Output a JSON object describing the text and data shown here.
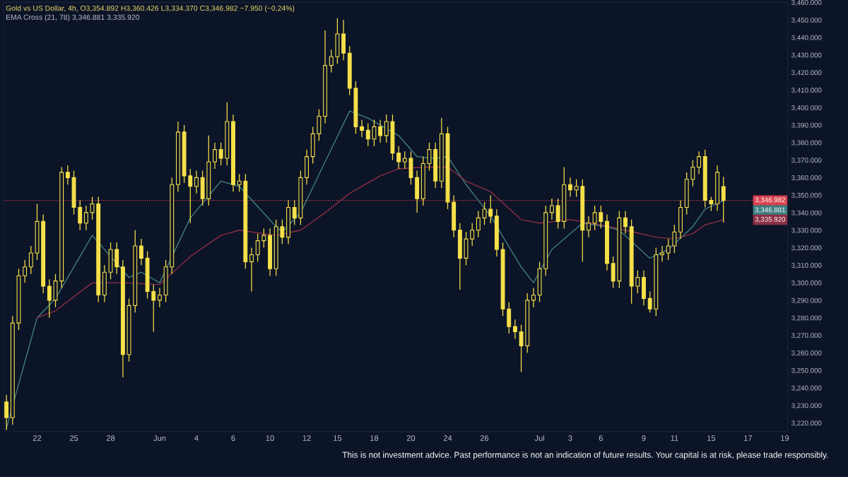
{
  "chart_data": {
    "type": "candlestick",
    "title": "Gold vs US Dollar, 4h, O3,354.892 H3,360.426 L3,334.370 C3,346.982 −7.950 (−0.24%)",
    "subtitle": "EMA Cross (21, 78) 3,346.881 3,335.920",
    "annotations": [
      "This is not investment advice. Past performance is not an indication of future results. Your capital is at risk, please trade responsibly.",
      "3,346.881",
      "3,335.920"
    ],
    "series": [
      {
        "color": "#f5e04a",
        "ohlc": [
          [
            3232,
            3236,
            3216,
            3223
          ],
          [
            3223,
            3281,
            3219,
            3277
          ],
          [
            3277,
            3308,
            3273,
            3304
          ],
          [
            3304,
            3313,
            3300,
            3309
          ],
          [
            3309,
            3321,
            3305,
            3317
          ],
          [
            3317,
            3345,
            3313,
            3335
          ],
          [
            3335,
            3339,
            3294,
            3298
          ],
          [
            3298,
            3302,
            3280,
            3290
          ],
          [
            3290,
            3305,
            3286,
            3301
          ],
          [
            3301,
            3366,
            3297,
            3363
          ],
          [
            3363,
            3367,
            3356,
            3360
          ],
          [
            3360,
            3364,
            3339,
            3343
          ],
          [
            3343,
            3347,
            3330,
            3334
          ],
          [
            3334,
            3344,
            3330,
            3340
          ],
          [
            3340,
            3349,
            3336,
            3345
          ],
          [
            3345,
            3349,
            3289,
            3293
          ],
          [
            3293,
            3310,
            3289,
            3306
          ],
          [
            3306,
            3323,
            3302,
            3319
          ],
          [
            3319,
            3323,
            3305,
            3309
          ],
          [
            3309,
            3313,
            3246,
            3259
          ],
          [
            3259,
            3291,
            3255,
            3287
          ],
          [
            3287,
            3330,
            3283,
            3321
          ],
          [
            3321,
            3325,
            3310,
            3314
          ],
          [
            3314,
            3318,
            3291,
            3295
          ],
          [
            3295,
            3299,
            3272,
            3290
          ],
          [
            3290,
            3297,
            3286,
            3293
          ],
          [
            3293,
            3313,
            3289,
            3309
          ],
          [
            3309,
            3360,
            3305,
            3356
          ],
          [
            3356,
            3392,
            3352,
            3386
          ],
          [
            3386,
            3390,
            3357,
            3361
          ],
          [
            3361,
            3365,
            3334,
            3355
          ],
          [
            3355,
            3364,
            3351,
            3360
          ],
          [
            3360,
            3364,
            3344,
            3348
          ],
          [
            3348,
            3384,
            3344,
            3369
          ],
          [
            3369,
            3380,
            3365,
            3376
          ],
          [
            3376,
            3380,
            3367,
            3371
          ],
          [
            3371,
            3403,
            3367,
            3392
          ],
          [
            3392,
            3396,
            3352,
            3356
          ],
          [
            3356,
            3362,
            3352,
            3358
          ],
          [
            3358,
            3362,
            3308,
            3312
          ],
          [
            3312,
            3320,
            3295,
            3316
          ],
          [
            3316,
            3328,
            3312,
            3324
          ],
          [
            3324,
            3331,
            3320,
            3327
          ],
          [
            3327,
            3331,
            3304,
            3308
          ],
          [
            3308,
            3336,
            3304,
            3332
          ],
          [
            3332,
            3336,
            3322,
            3326
          ],
          [
            3326,
            3347,
            3322,
            3343
          ],
          [
            3343,
            3347,
            3333,
            3337
          ],
          [
            3337,
            3364,
            3333,
            3360
          ],
          [
            3360,
            3376,
            3356,
            3372
          ],
          [
            3372,
            3389,
            3368,
            3385
          ],
          [
            3385,
            3399,
            3381,
            3395
          ],
          [
            3395,
            3444,
            3391,
            3424
          ],
          [
            3424,
            3433,
            3420,
            3429
          ],
          [
            3429,
            3451,
            3425,
            3442
          ],
          [
            3442,
            3450,
            3427,
            3431
          ],
          [
            3431,
            3435,
            3407,
            3411
          ],
          [
            3411,
            3415,
            3385,
            3389
          ],
          [
            3389,
            3393,
            3383,
            3387
          ],
          [
            3387,
            3391,
            3378,
            3382
          ],
          [
            3382,
            3393,
            3378,
            3389
          ],
          [
            3389,
            3393,
            3380,
            3384
          ],
          [
            3384,
            3396,
            3380,
            3392
          ],
          [
            3392,
            3396,
            3370,
            3374
          ],
          [
            3374,
            3378,
            3365,
            3369
          ],
          [
            3369,
            3375,
            3365,
            3371
          ],
          [
            3371,
            3375,
            3356,
            3360
          ],
          [
            3360,
            3364,
            3340,
            3348
          ],
          [
            3348,
            3372,
            3344,
            3368
          ],
          [
            3368,
            3380,
            3364,
            3376
          ],
          [
            3376,
            3380,
            3354,
            3358
          ],
          [
            3358,
            3394,
            3354,
            3385
          ],
          [
            3385,
            3389,
            3342,
            3346
          ],
          [
            3346,
            3350,
            3326,
            3330
          ],
          [
            3330,
            3334,
            3296,
            3314
          ],
          [
            3314,
            3329,
            3310,
            3325
          ],
          [
            3325,
            3334,
            3321,
            3330
          ],
          [
            3330,
            3341,
            3326,
            3337
          ],
          [
            3337,
            3346,
            3333,
            3342
          ],
          [
            3342,
            3350,
            3334,
            3338
          ],
          [
            3338,
            3342,
            3315,
            3319
          ],
          [
            3319,
            3323,
            3281,
            3285
          ],
          [
            3285,
            3289,
            3271,
            3275
          ],
          [
            3275,
            3279,
            3268,
            3272
          ],
          [
            3272,
            3276,
            3249,
            3264
          ],
          [
            3264,
            3294,
            3260,
            3290
          ],
          [
            3290,
            3297,
            3286,
            3293
          ],
          [
            3293,
            3312,
            3289,
            3308
          ],
          [
            3308,
            3344,
            3304,
            3340
          ],
          [
            3340,
            3348,
            3336,
            3344
          ],
          [
            3344,
            3348,
            3331,
            3335
          ],
          [
            3335,
            3366,
            3331,
            3356
          ],
          [
            3356,
            3360,
            3349,
            3353
          ],
          [
            3353,
            3359,
            3349,
            3355
          ],
          [
            3355,
            3359,
            3312,
            3330
          ],
          [
            3330,
            3338,
            3326,
            3334
          ],
          [
            3334,
            3344,
            3330,
            3340
          ],
          [
            3340,
            3344,
            3331,
            3335
          ],
          [
            3335,
            3339,
            3307,
            3311
          ],
          [
            3311,
            3315,
            3297,
            3301
          ],
          [
            3301,
            3341,
            3297,
            3337
          ],
          [
            3337,
            3341,
            3328,
            3332
          ],
          [
            3332,
            3336,
            3288,
            3298
          ],
          [
            3298,
            3307,
            3294,
            3303
          ],
          [
            3303,
            3307,
            3287,
            3291
          ],
          [
            3291,
            3295,
            3283,
            3285
          ],
          [
            3285,
            3320,
            3281,
            3316
          ],
          [
            3316,
            3321,
            3312,
            3317
          ],
          [
            3317,
            3325,
            3313,
            3321
          ],
          [
            3321,
            3333,
            3317,
            3329
          ],
          [
            3329,
            3347,
            3325,
            3343
          ],
          [
            3343,
            3363,
            3339,
            3359
          ],
          [
            3359,
            3370,
            3355,
            3366
          ],
          [
            3366,
            3375,
            3362,
            3372
          ],
          [
            3372,
            3376,
            3343,
            3347
          ],
          [
            3347,
            3349,
            3341,
            3345
          ],
          [
            3345,
            3367,
            3341,
            3363
          ],
          [
            3354.892,
            3360.426,
            3334.37,
            3346.982
          ],
          null,
          null,
          null,
          null,
          null,
          null,
          null,
          null,
          null,
          null
        ]
      },
      {
        "type": "line",
        "color": "#3f7f80",
        "values": [
          3217,
          null,
          null,
          null,
          null,
          3280,
          null,
          null,
          3291,
          null,
          null,
          null,
          null,
          null,
          3327,
          null,
          null,
          null,
          null,
          null,
          3303,
          null,
          3306,
          null,
          null,
          3300,
          null,
          null,
          null,
          null,
          3337,
          null,
          null,
          null,
          null,
          3358,
          null,
          null,
          3355,
          null,
          null,
          null,
          null,
          null,
          3332,
          3329,
          null,
          null,
          3340,
          null,
          null,
          null,
          3369,
          null,
          null,
          null,
          3398,
          null,
          null,
          3394,
          null,
          null,
          null,
          null,
          3384,
          null,
          null,
          3372,
          null,
          null,
          3371,
          null,
          3372,
          null,
          null,
          3356,
          null,
          null,
          null,
          3338,
          null,
          null,
          null,
          null,
          3309,
          null,
          3300,
          null,
          null,
          3319,
          null,
          null,
          null,
          null,
          3334,
          null,
          null,
          null,
          3332,
          null,
          3330,
          null,
          null,
          null,
          null,
          3314,
          null,
          null,
          3319,
          null,
          null,
          null,
          3332,
          null,
          3342,
          null,
          null,
          3346.881,
          null,
          null,
          null,
          null,
          null,
          null,
          null,
          null,
          null,
          null
        ]
      },
      {
        "type": "line",
        "color": "#8c2f45",
        "values": [
          null,
          null,
          null,
          null,
          null,
          3280,
          null,
          null,
          3284,
          null,
          null,
          null,
          null,
          null,
          3300,
          null,
          null,
          null,
          null,
          3300,
          null,
          null,
          null,
          null,
          null,
          3299,
          null,
          null,
          null,
          null,
          3315,
          null,
          null,
          null,
          null,
          3327,
          null,
          null,
          3330,
          null,
          null,
          null,
          null,
          null,
          3327,
          null,
          null,
          null,
          3330,
          null,
          null,
          null,
          3340,
          null,
          null,
          null,
          3351,
          null,
          null,
          null,
          null,
          3361,
          null,
          null,
          3365,
          null,
          null,
          null,
          3366,
          null,
          null,
          null,
          3366,
          null,
          null,
          3358,
          null,
          null,
          null,
          3352,
          null,
          null,
          null,
          null,
          3336,
          null,
          null,
          3334,
          null,
          null,
          null,
          null,
          3336,
          null,
          null,
          null,
          null,
          3333,
          null,
          null,
          null,
          3330,
          null,
          null,
          null,
          null,
          3326,
          null,
          null,
          3325,
          null,
          null,
          3328,
          null,
          3333,
          null,
          null,
          3335.92,
          null,
          null,
          null,
          null,
          null,
          null,
          null,
          null,
          null,
          null
        ]
      }
    ],
    "ref_lines": [
      {
        "axis": "y",
        "value": 3346.982,
        "label": "3,346.982",
        "color": "#d9434f",
        "line_style": "dotted"
      }
    ],
    "categories": [
      null,
      null,
      null,
      null,
      null,
      "22",
      null,
      null,
      null,
      null,
      null,
      "25",
      null,
      null,
      null,
      null,
      null,
      "28",
      null,
      null,
      null,
      null,
      null,
      null,
      null,
      "Jun",
      null,
      null,
      null,
      null,
      null,
      "4",
      null,
      null,
      null,
      null,
      null,
      "6",
      null,
      null,
      null,
      null,
      null,
      "10",
      null,
      null,
      null,
      null,
      null,
      "12",
      null,
      null,
      null,
      null,
      "15",
      null,
      null,
      null,
      null,
      null,
      "18",
      null,
      null,
      null,
      null,
      null,
      "20",
      null,
      null,
      null,
      null,
      null,
      "24",
      null,
      null,
      null,
      null,
      null,
      "26",
      null,
      null,
      null,
      null,
      null,
      null,
      null,
      null,
      "Jul",
      null,
      null,
      null,
      null,
      "3",
      null,
      null,
      null,
      null,
      "6",
      null,
      null,
      null,
      null,
      null,
      null,
      "9",
      null,
      null,
      null,
      null,
      "11",
      null,
      null,
      null,
      null,
      null,
      "15",
      null,
      null,
      null,
      null,
      null,
      "17",
      null,
      null,
      null,
      null,
      null,
      "19"
    ],
    "ylim": [
      3215,
      3460
    ],
    "yticks": [
      {
        "value": 3220,
        "label": "3,220.000"
      },
      {
        "value": 3230,
        "label": "3,230.000"
      },
      {
        "value": 3240,
        "label": "3,240.000"
      },
      {
        "value": 3250,
        "label": "3,250.000"
      },
      {
        "value": 3260,
        "label": "3,260.000"
      },
      {
        "value": 3270,
        "label": "3,270.000"
      },
      {
        "value": 3280,
        "label": "3,280.000"
      },
      {
        "value": 3290,
        "label": "3,290.000"
      },
      {
        "value": 3300,
        "label": "3,300.000"
      },
      {
        "value": 3310,
        "label": "3,310.000"
      },
      {
        "value": 3320,
        "label": "3,320.000"
      },
      {
        "value": 3330,
        "label": "3,330.000"
      },
      {
        "value": 3340,
        "label": "3,340.000"
      },
      {
        "value": 3350,
        "label": "3,350.000"
      },
      {
        "value": 3360,
        "label": "3,360.000"
      },
      {
        "value": 3370,
        "label": "3,370.000"
      },
      {
        "value": 3380,
        "label": "3,380.000"
      },
      {
        "value": 3390,
        "label": "3,390.000"
      },
      {
        "value": 3400,
        "label": "3,400.000"
      },
      {
        "value": 3410,
        "label": "3,410.000"
      },
      {
        "value": 3420,
        "label": "3,420.000"
      },
      {
        "value": 3430,
        "label": "3,430.000"
      },
      {
        "value": 3440,
        "label": "3,440.000"
      },
      {
        "value": 3450,
        "label": "3,450.000"
      },
      {
        "value": 3460,
        "label": "3,460.000"
      }
    ],
    "grid": false
  }
}
